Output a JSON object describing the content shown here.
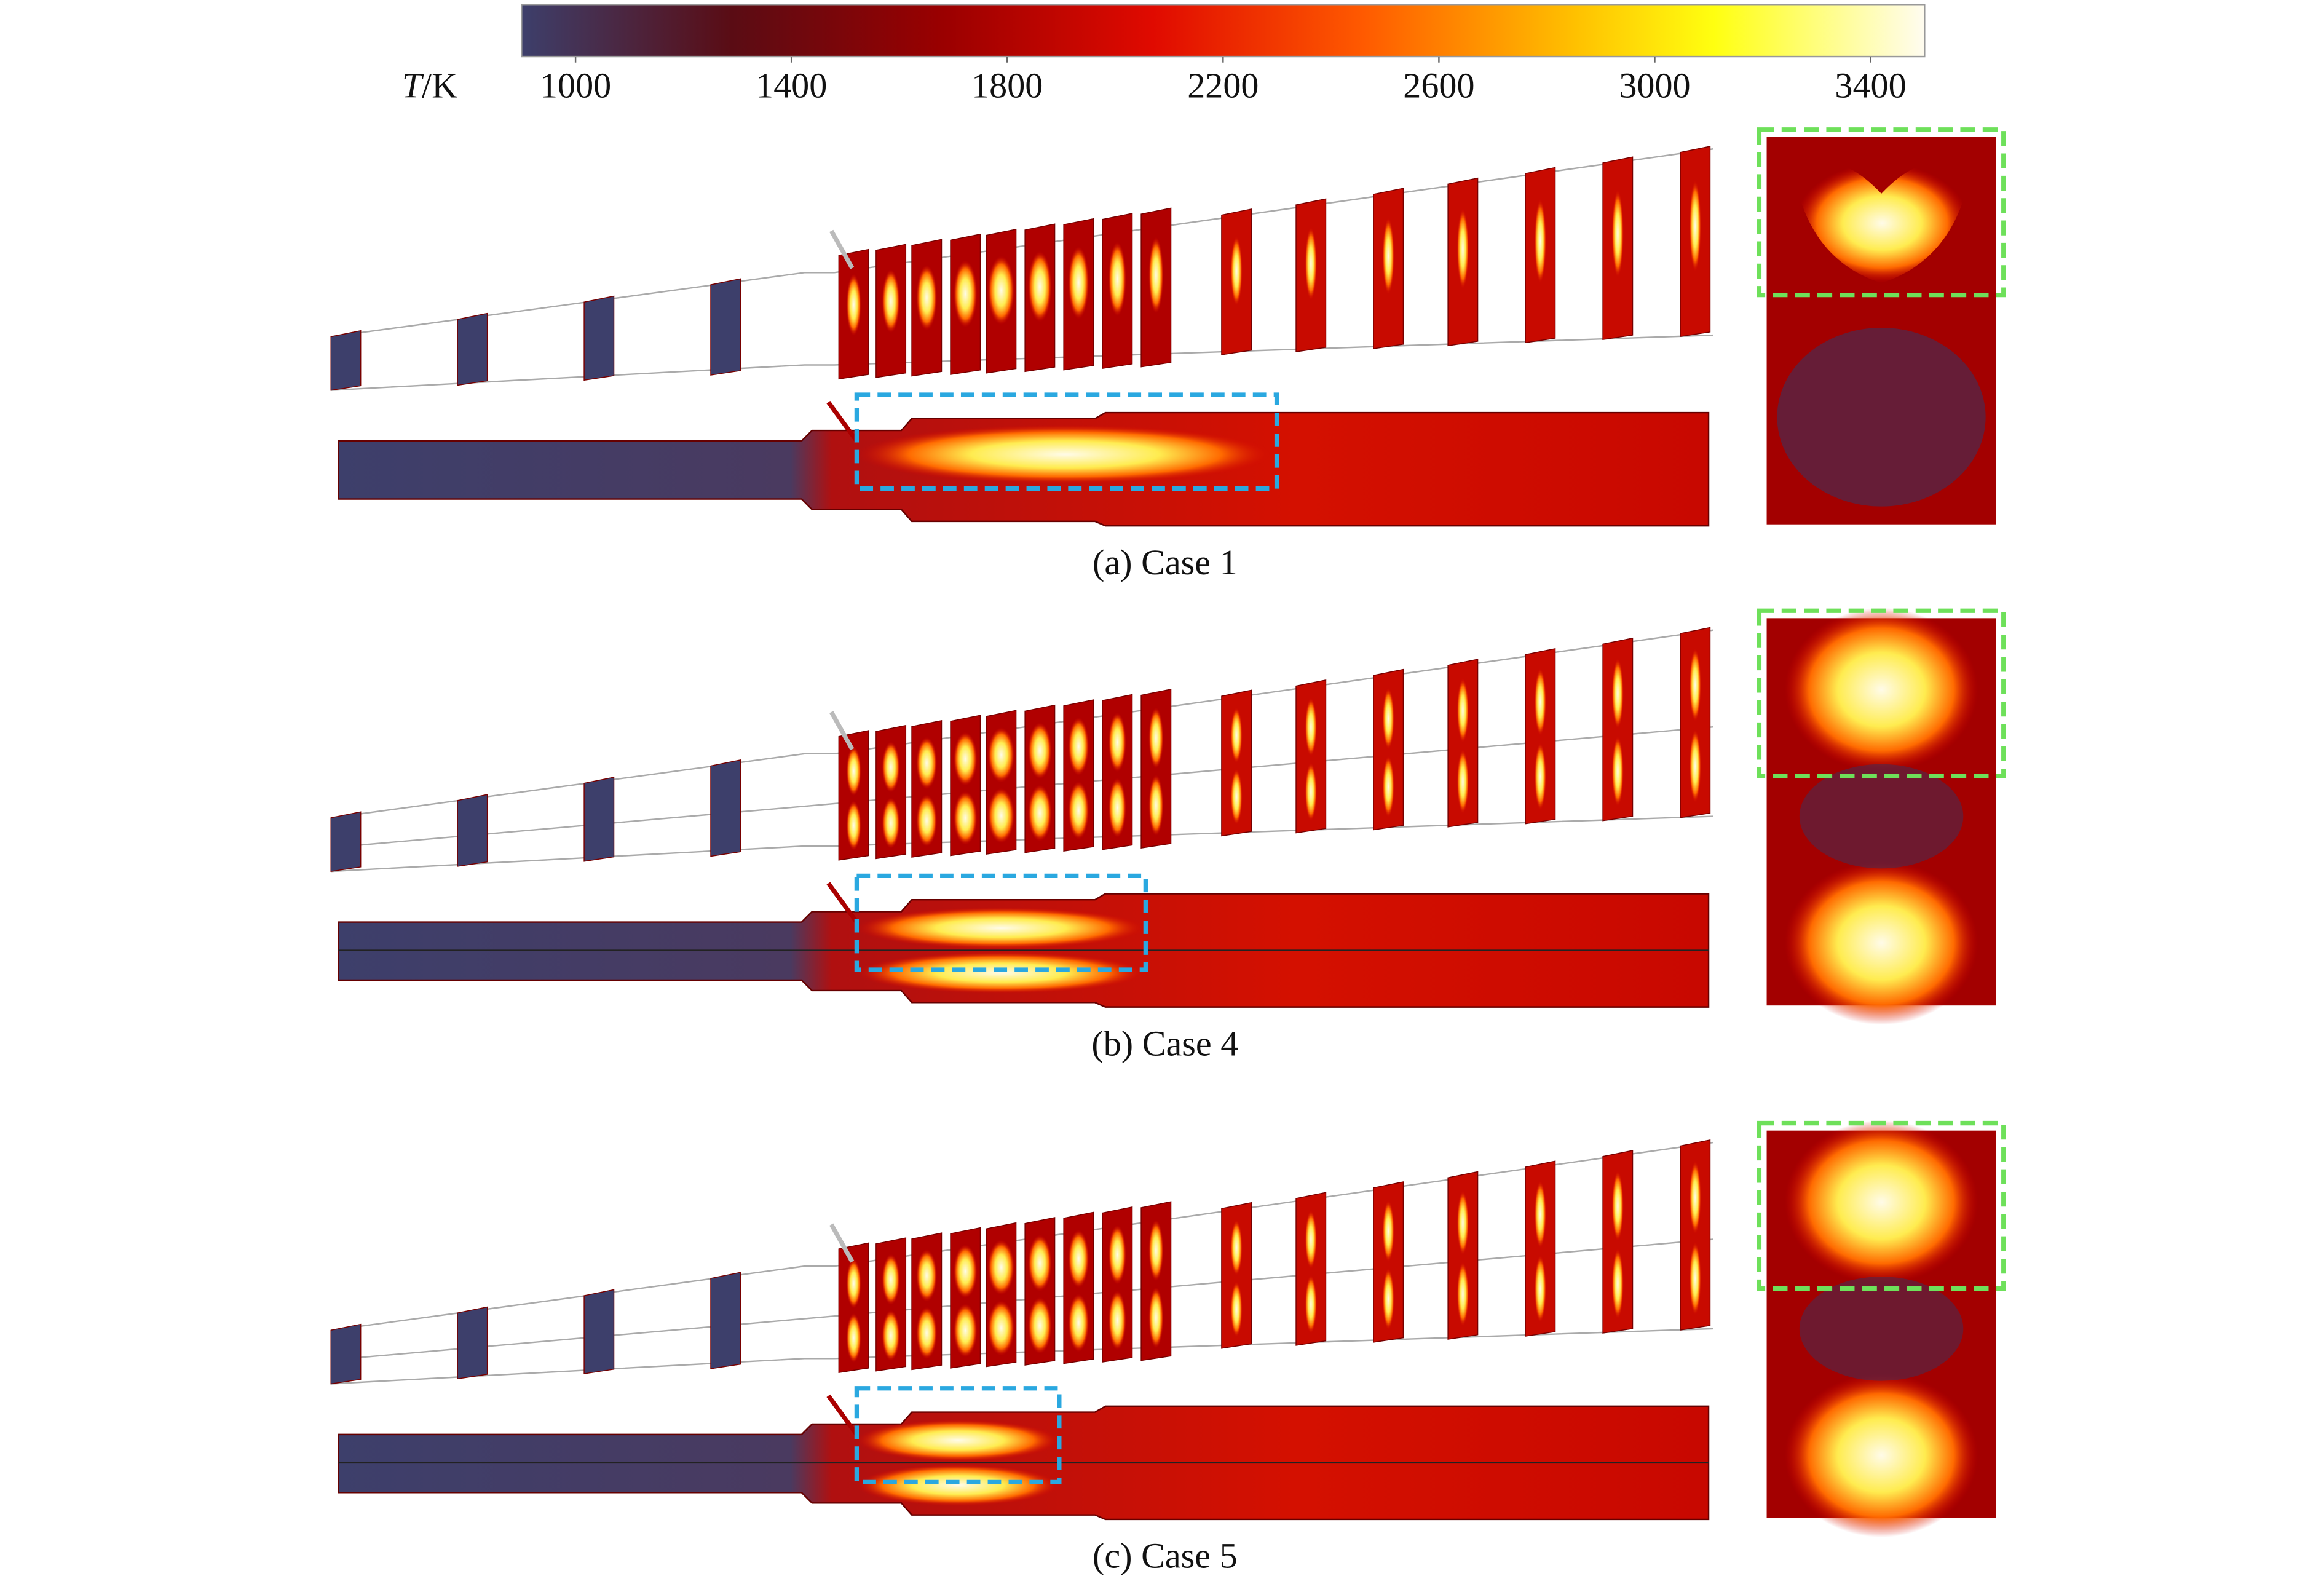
{
  "colorbar": {
    "symbol": "T",
    "unit": "/K",
    "range": [
      900,
      3500
    ],
    "ticks": [
      1000,
      1400,
      1800,
      2200,
      2600,
      3000,
      3400
    ]
  },
  "panels": [
    {
      "caption": "(a) Case 1"
    },
    {
      "caption": "(b) Case 4"
    },
    {
      "caption": "(c) Case 5"
    }
  ]
}
